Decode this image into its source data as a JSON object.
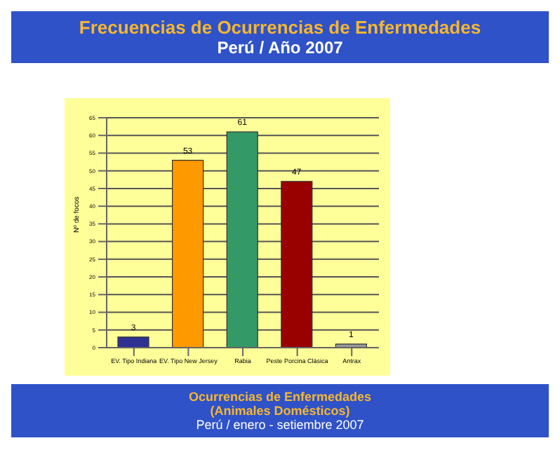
{
  "chart_data": {
    "type": "bar",
    "title": "Frecuencias de Ocurrencias de Enfermedades",
    "subtitle": "Perú / Año 2007",
    "ylabel": "Nº de focos",
    "categories": [
      "EV. Tipo Indiana",
      "EV. Tipo New Jersey",
      "Rabia",
      "Peste Porcina Clásica",
      "Antrax"
    ],
    "values": [
      3,
      53,
      61,
      47,
      1
    ],
    "colors": [
      "#2e3192",
      "#ff9900",
      "#339966",
      "#990000",
      "#999999"
    ],
    "value_labels": [
      "3",
      "53",
      "61",
      "47",
      "1"
    ],
    "ylim": [
      0,
      65
    ],
    "yticks": [
      0,
      5,
      10,
      15,
      20,
      25,
      30,
      35,
      40,
      45,
      50,
      55,
      60,
      65
    ],
    "grid": "y",
    "annotations": [
      "Ocurrencias de Enfermedades",
      "(Animales Domésticos)",
      "Perú / enero - setiembre  2007"
    ]
  }
}
